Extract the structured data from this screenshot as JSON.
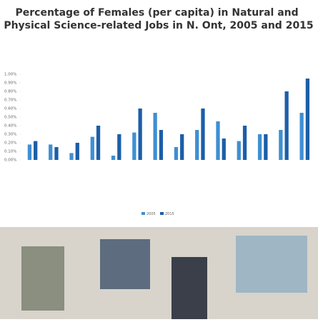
{
  "chart_data": {
    "type": "bar",
    "title": "Percentage of Females (per capita) in Natural and Physical Science-related Jobs in N. Ont, 2005 and 2015",
    "categories": [
      null,
      null,
      null,
      null,
      null,
      null,
      null,
      null,
      null,
      null,
      null,
      null,
      null,
      null
    ],
    "series": [
      {
        "name": "2005",
        "color": "#3f8fd2",
        "values": [
          0.18,
          0.18,
          0.08,
          0.27,
          0.05,
          0.32,
          0.55,
          0.15,
          0.35,
          0.45,
          0.22,
          0.3,
          0.35,
          0.55
        ]
      },
      {
        "name": "2015",
        "color": "#1c5ea8",
        "values": [
          0.22,
          0.15,
          0.2,
          0.4,
          0.3,
          0.6,
          0.35,
          0.3,
          0.6,
          0.25,
          0.4,
          0.3,
          0.8,
          0.95
        ]
      }
    ],
    "ylim": [
      0,
      1
    ],
    "yticks": [
      {
        "value": 0,
        "label": "0.00%"
      },
      {
        "value": 0.1,
        "label": "0.10%"
      },
      {
        "value": 0.2,
        "label": "0.20%"
      },
      {
        "value": 0.3,
        "label": "0.30%"
      },
      {
        "value": 0.4,
        "label": "0.40%"
      },
      {
        "value": 0.5,
        "label": "0.50%"
      },
      {
        "value": 0.6,
        "label": "0.60%"
      },
      {
        "value": 0.7,
        "label": "0.70%"
      },
      {
        "value": 0.8,
        "label": "0.80%"
      },
      {
        "value": 0.9,
        "label": "0.90%"
      },
      {
        "value": 1,
        "label": "1.00%"
      }
    ],
    "grid": false,
    "legend": "bottom"
  }
}
